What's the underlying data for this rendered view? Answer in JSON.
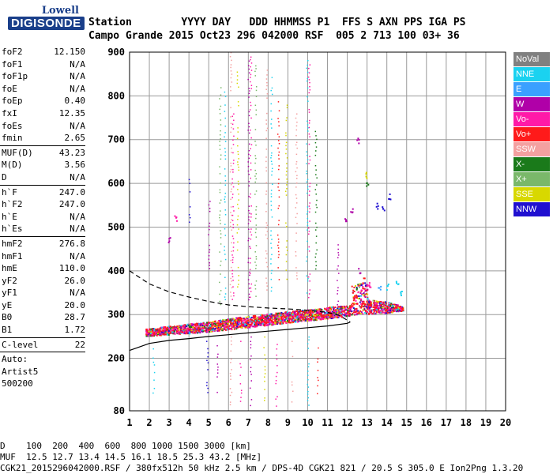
{
  "logo": {
    "line1": "Lowell",
    "line2": "DIGISONDE"
  },
  "header": {
    "labels": [
      "Station",
      "YYYY",
      "DAY",
      "DDD",
      "HHMMSS",
      "P1",
      "FFS",
      "S",
      "AXN",
      "PPS",
      "IGA",
      "PS"
    ],
    "values": [
      "Campo Grande",
      "2015",
      "Oct23",
      "296",
      "042000",
      "RSF",
      "005",
      "2",
      "713",
      "100",
      "03+",
      "36"
    ]
  },
  "params": [
    {
      "k": "foF2",
      "v": "12.150"
    },
    {
      "k": "foF1",
      "v": "N/A"
    },
    {
      "k": "foF1p",
      "v": "N/A"
    },
    {
      "k": "foE",
      "v": "N/A"
    },
    {
      "k": "foEp",
      "v": "0.40"
    },
    {
      "k": "fxI",
      "v": "12.35"
    },
    {
      "k": "foEs",
      "v": "N/A"
    },
    {
      "k": "fmin",
      "v": "2.65"
    },
    {
      "sep": true
    },
    {
      "k": "MUF(D)",
      "v": "43.23"
    },
    {
      "k": "M(D)",
      "v": "3.56"
    },
    {
      "k": "D",
      "v": "N/A"
    },
    {
      "sep": true
    },
    {
      "k": "h`F",
      "v": "247.0"
    },
    {
      "k": "h`F2",
      "v": "247.0"
    },
    {
      "k": "h`E",
      "v": "N/A"
    },
    {
      "k": "h`Es",
      "v": "N/A"
    },
    {
      "sep": true
    },
    {
      "k": "hmF2",
      "v": "276.8"
    },
    {
      "k": "hmF1",
      "v": "N/A"
    },
    {
      "k": "hmE",
      "v": "110.0"
    },
    {
      "k": "yF2",
      "v": "26.0"
    },
    {
      "k": "yF1",
      "v": "N/A"
    },
    {
      "k": "yE",
      "v": "20.0"
    },
    {
      "k": "B0",
      "v": "28.7"
    },
    {
      "k": "B1",
      "v": "1.72"
    },
    {
      "sep": true
    },
    {
      "k": "C-level",
      "v": "22"
    },
    {
      "sep": true
    },
    {
      "k": "Auto:",
      "v": ""
    },
    {
      "k": "Artist5",
      "v": ""
    },
    {
      "k": "500200",
      "v": ""
    }
  ],
  "legend": [
    {
      "label": "NoVal",
      "color": "#808080"
    },
    {
      "label": "NNE",
      "color": "#1ad2f0"
    },
    {
      "label": "E",
      "color": "#3aa0ff"
    },
    {
      "label": "W",
      "color": "#b000a8"
    },
    {
      "label": "Vo-",
      "color": "#ff1aa8"
    },
    {
      "label": "Vo+",
      "color": "#ff1a1a"
    },
    {
      "label": "SSW",
      "color": "#f4a0a0"
    },
    {
      "label": "X-",
      "color": "#1a7a1a"
    },
    {
      "label": "X+",
      "color": "#7ab86a"
    },
    {
      "label": "SSE",
      "color": "#d8d800"
    },
    {
      "label": "NNW",
      "color": "#2010d0"
    }
  ],
  "footer": {
    "line1": "D    100  200  400  600  800 1000 1500 3000 [km]",
    "line2": "MUF  12.5 12.7 13.4 14.5 16.1 18.5 25.3 43.2 [MHz]",
    "line3": "CGK21_2015296042000.RSF / 380fx512h 50 kHz 2.5 km / DPS-4D CGK21 821 / 20.5 S 305.0 E Ion2Png 1.3.20"
  },
  "chart_data": {
    "type": "scatter",
    "title": "",
    "xlabel": "",
    "ylabel": "",
    "xlim": [
      1,
      20
    ],
    "ylim": [
      80,
      900
    ],
    "xticks": [
      1,
      2,
      3,
      4,
      5,
      6,
      7,
      8,
      9,
      10,
      11,
      12,
      13,
      14,
      15,
      16,
      17,
      18,
      19,
      20
    ],
    "yticks": [
      80,
      200,
      300,
      400,
      500,
      600,
      700,
      800,
      900
    ],
    "grid": true,
    "trace_band": {
      "x": [
        1.8,
        3,
        4,
        5,
        6,
        7,
        8,
        9,
        10,
        11,
        12,
        12.4,
        13,
        14,
        14.8
      ],
      "y_low": [
        252,
        255,
        258,
        262,
        267,
        272,
        277,
        282,
        287,
        292,
        298,
        300,
        302,
        305,
        310
      ],
      "y_high": [
        268,
        275,
        280,
        285,
        292,
        298,
        303,
        308,
        313,
        318,
        323,
        330,
        335,
        330,
        320
      ]
    },
    "profile_upper": {
      "x": [
        1.0,
        1.5,
        2.0,
        3.0,
        4.0,
        5.0,
        6.0,
        7.0,
        8.0,
        9.0,
        10.0,
        11.0,
        11.6,
        12.15
      ],
      "y": [
        400,
        385,
        370,
        352,
        340,
        330,
        322,
        318,
        315,
        313,
        310,
        305,
        298,
        283
      ]
    },
    "profile_lower": {
      "x": [
        1.0,
        1.5,
        2.0,
        3.0,
        4.0,
        5.0,
        6.0,
        7.0,
        8.0,
        9.0,
        10.0,
        11.0,
        12.0,
        12.15
      ],
      "y": [
        218,
        226,
        234,
        241,
        245,
        250,
        254,
        258,
        262,
        266,
        270,
        274,
        280,
        283
      ]
    },
    "vertical_streaks": [
      {
        "x": 4.0,
        "ymin": 490,
        "ymax": 610,
        "color": "#2010d0"
      },
      {
        "x": 5.0,
        "ymin": 400,
        "ymax": 560,
        "color": "#b000a8"
      },
      {
        "x": 5.55,
        "ymin": 320,
        "ymax": 820,
        "color": "#7ab86a"
      },
      {
        "x": 5.8,
        "ymin": 330,
        "ymax": 810,
        "color": "#1ad2f0"
      },
      {
        "x": 6.1,
        "ymin": 340,
        "ymax": 900,
        "color": "#f4a0a0"
      },
      {
        "x": 6.2,
        "ymin": 320,
        "ymax": 760,
        "color": "#ff1aa8"
      },
      {
        "x": 6.45,
        "ymin": 350,
        "ymax": 880,
        "color": "#d8d800"
      },
      {
        "x": 7.0,
        "ymin": 330,
        "ymax": 900,
        "color": "#b000a8"
      },
      {
        "x": 7.1,
        "ymin": 340,
        "ymax": 890,
        "color": "#ff1aa8"
      },
      {
        "x": 7.35,
        "ymin": 340,
        "ymax": 870,
        "color": "#7ab86a"
      },
      {
        "x": 7.9,
        "ymin": 350,
        "ymax": 860,
        "color": "#f4a0a0"
      },
      {
        "x": 8.15,
        "ymin": 350,
        "ymax": 860,
        "color": "#1ad2f0"
      },
      {
        "x": 8.5,
        "ymin": 360,
        "ymax": 820,
        "color": "#ff1a1a"
      },
      {
        "x": 8.9,
        "ymin": 380,
        "ymax": 780,
        "color": "#d8d800"
      },
      {
        "x": 9.4,
        "ymin": 380,
        "ymax": 760,
        "color": "#f4a0a0"
      },
      {
        "x": 9.95,
        "ymin": 350,
        "ymax": 890,
        "color": "#1ad2f0"
      },
      {
        "x": 10.05,
        "ymin": 340,
        "ymax": 880,
        "color": "#ff1aa8"
      },
      {
        "x": 10.4,
        "ymin": 400,
        "ymax": 720,
        "color": "#1a7a1a"
      },
      {
        "x": 11.5,
        "ymin": 320,
        "ymax": 480,
        "color": "#b000a8"
      }
    ],
    "low_streaks": [
      {
        "x": 2.2,
        "ymin": 120,
        "ymax": 240,
        "color": "#1ad2f0"
      },
      {
        "x": 4.9,
        "ymin": 120,
        "ymax": 240,
        "color": "#2010d0"
      },
      {
        "x": 5.4,
        "ymin": 110,
        "ymax": 230,
        "color": "#b000a8"
      },
      {
        "x": 6.1,
        "ymin": 90,
        "ymax": 250,
        "color": "#f4a0a0"
      },
      {
        "x": 6.6,
        "ymin": 100,
        "ymax": 240,
        "color": "#ff1aa8"
      },
      {
        "x": 7.1,
        "ymin": 90,
        "ymax": 250,
        "color": "#b000a8"
      },
      {
        "x": 7.8,
        "ymin": 90,
        "ymax": 250,
        "color": "#d8d800"
      },
      {
        "x": 8.4,
        "ymin": 90,
        "ymax": 240,
        "color": "#ff1aa8"
      },
      {
        "x": 9.2,
        "ymin": 100,
        "ymax": 240,
        "color": "#f4a0a0"
      },
      {
        "x": 10.0,
        "ymin": 90,
        "ymax": 250,
        "color": "#1ad2f0"
      },
      {
        "x": 10.5,
        "ymin": 110,
        "ymax": 240,
        "color": "#ff1a1a"
      }
    ],
    "scatter_points": [
      {
        "x": 12.5,
        "y": 700,
        "color": "#b000a8"
      },
      {
        "x": 12.9,
        "y": 620,
        "color": "#d8d800"
      },
      {
        "x": 13.0,
        "y": 600,
        "color": "#1a7a1a"
      },
      {
        "x": 13.5,
        "y": 550,
        "color": "#2010d0"
      },
      {
        "x": 13.8,
        "y": 545,
        "color": "#2010d0"
      },
      {
        "x": 14.1,
        "y": 570,
        "color": "#2010d0"
      },
      {
        "x": 12.2,
        "y": 540,
        "color": "#b000a8"
      },
      {
        "x": 11.9,
        "y": 520,
        "color": "#b000a8"
      },
      {
        "x": 3.3,
        "y": 520,
        "color": "#ff1aa8"
      },
      {
        "x": 3.0,
        "y": 470,
        "color": "#b000a8"
      },
      {
        "x": 12.6,
        "y": 400,
        "color": "#b000a8"
      },
      {
        "x": 12.8,
        "y": 380,
        "color": "#ff1a1a"
      },
      {
        "x": 13.1,
        "y": 370,
        "color": "#ff1aa8"
      },
      {
        "x": 13.6,
        "y": 360,
        "color": "#3aa0ff"
      },
      {
        "x": 14.0,
        "y": 365,
        "color": "#1ad2f0"
      },
      {
        "x": 14.5,
        "y": 370,
        "color": "#1ad2f0"
      },
      {
        "x": 14.7,
        "y": 350,
        "color": "#1ad2f0"
      }
    ]
  }
}
